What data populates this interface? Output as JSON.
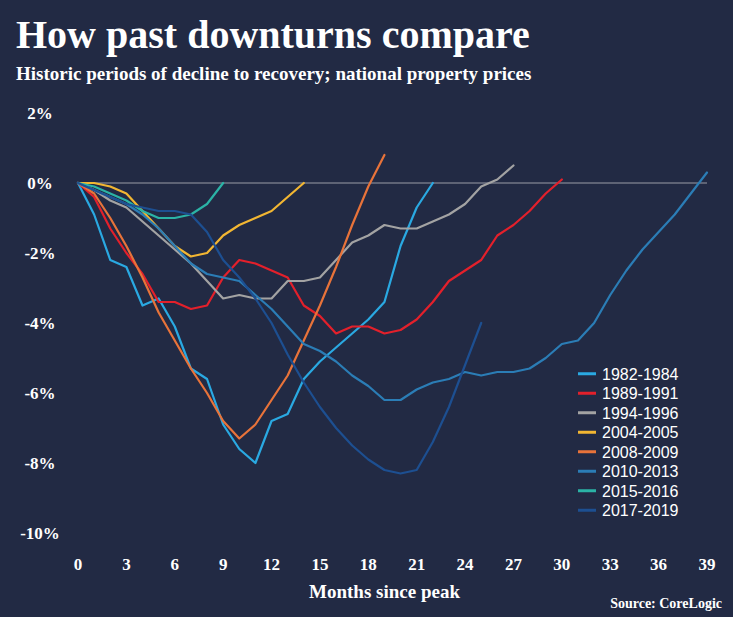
{
  "chart_data": {
    "type": "line",
    "title": "How past downturns compare",
    "subtitle": "Historic periods of decline to recovery; national property prices",
    "x_label": "Months since peak",
    "source": "Source: CoreLogic",
    "x": [
      0,
      1,
      2,
      3,
      4,
      5,
      6,
      7,
      8,
      9,
      10,
      11,
      12,
      13,
      14,
      15,
      16,
      17,
      18,
      19,
      20,
      21,
      22,
      23,
      24,
      25,
      26,
      27,
      28,
      29,
      30,
      31,
      32,
      33,
      34,
      35,
      36,
      37,
      38,
      39
    ],
    "xlim": [
      0,
      39
    ],
    "xticks": [
      0,
      3,
      6,
      9,
      12,
      15,
      18,
      21,
      24,
      27,
      30,
      33,
      36,
      39
    ],
    "ylim": [
      -10,
      2
    ],
    "yticks": [
      {
        "value": 2,
        "label": "2%"
      },
      {
        "value": 0,
        "label": "0%"
      },
      {
        "value": -2,
        "label": "-2%"
      },
      {
        "value": -4,
        "label": "-4%"
      },
      {
        "value": -6,
        "label": "-6%"
      },
      {
        "value": -8,
        "label": "-8%"
      },
      {
        "value": -10,
        "label": "-10%"
      }
    ],
    "grid": false,
    "legend": "bottom-right",
    "series": [
      {
        "name": "1982-1984",
        "color": "#2aa9e2",
        "values": [
          0,
          -0.9,
          -2.2,
          -2.4,
          -3.5,
          -3.3,
          -4.1,
          -5.3,
          -5.6,
          -6.9,
          -7.6,
          -8.0,
          -6.8,
          -6.6,
          -5.6,
          -5.1,
          -4.7,
          -4.3,
          -3.9,
          -3.4,
          -1.8,
          -0.7,
          0,
          null,
          null,
          null,
          null,
          null,
          null,
          null,
          null,
          null,
          null,
          null,
          null,
          null,
          null,
          null,
          null,
          null
        ]
      },
      {
        "name": "1989-1991",
        "color": "#e3202b",
        "values": [
          0,
          -0.4,
          -1.3,
          -2.0,
          -2.6,
          -3.4,
          -3.4,
          -3.6,
          -3.5,
          -2.7,
          -2.2,
          -2.3,
          -2.5,
          -2.7,
          -3.5,
          -3.8,
          -4.3,
          -4.1,
          -4.1,
          -4.3,
          -4.2,
          -3.9,
          -3.4,
          -2.8,
          -2.5,
          -2.2,
          -1.5,
          -1.2,
          -0.8,
          -0.3,
          0.1,
          null,
          null,
          null,
          null,
          null,
          null,
          null,
          null,
          null
        ]
      },
      {
        "name": "1994-1996",
        "color": "#a3a3a3",
        "values": [
          0,
          -0.2,
          -0.5,
          -0.7,
          -1.1,
          -1.5,
          -1.9,
          -2.3,
          -2.8,
          -3.3,
          -3.2,
          -3.3,
          -3.3,
          -2.8,
          -2.8,
          -2.7,
          -2.2,
          -1.7,
          -1.5,
          -1.2,
          -1.3,
          -1.3,
          -1.1,
          -0.9,
          -0.6,
          -0.1,
          0.1,
          0.5,
          null,
          null,
          null,
          null,
          null,
          null,
          null,
          null,
          null,
          null,
          null,
          null
        ]
      },
      {
        "name": "2004-2005",
        "color": "#f2b632",
        "values": [
          0,
          0,
          -0.1,
          -0.3,
          -0.8,
          -1.3,
          -1.8,
          -2.1,
          -2.0,
          -1.5,
          -1.2,
          -1.0,
          -0.8,
          -0.4,
          0,
          null,
          null,
          null,
          null,
          null,
          null,
          null,
          null,
          null,
          null,
          null,
          null,
          null,
          null,
          null,
          null,
          null,
          null,
          null,
          null,
          null,
          null,
          null,
          null,
          null
        ]
      },
      {
        "name": "2008-2009",
        "color": "#e8733a",
        "values": [
          0,
          -0.3,
          -1.0,
          -1.8,
          -2.7,
          -3.7,
          -4.5,
          -5.3,
          -6.0,
          -6.8,
          -7.3,
          -6.9,
          -6.2,
          -5.5,
          -4.5,
          -3.5,
          -2.4,
          -1.2,
          -0.1,
          0.8,
          null,
          null,
          null,
          null,
          null,
          null,
          null,
          null,
          null,
          null,
          null,
          null,
          null,
          null,
          null,
          null,
          null,
          null,
          null,
          null
        ]
      },
      {
        "name": "2010-2013",
        "color": "#2b7db6",
        "values": [
          0,
          -0.2,
          -0.4,
          -0.6,
          -0.9,
          -1.3,
          -1.8,
          -2.3,
          -2.6,
          -2.7,
          -2.8,
          -3.2,
          -3.6,
          -4.1,
          -4.6,
          -4.8,
          -5.1,
          -5.5,
          -5.8,
          -6.2,
          -6.2,
          -5.9,
          -5.7,
          -5.6,
          -5.4,
          -5.5,
          -5.4,
          -5.4,
          -5.3,
          -5.0,
          -4.6,
          -4.5,
          -4.0,
          -3.2,
          -2.5,
          -1.9,
          -1.4,
          -0.9,
          -0.3,
          0.3
        ]
      },
      {
        "name": "2015-2016",
        "color": "#2bb3a6",
        "values": [
          0,
          -0.1,
          -0.3,
          -0.5,
          -0.8,
          -1.0,
          -1.0,
          -0.9,
          -0.6,
          0,
          null,
          null,
          null,
          null,
          null,
          null,
          null,
          null,
          null,
          null,
          null,
          null,
          null,
          null,
          null,
          null,
          null,
          null,
          null,
          null,
          null,
          null,
          null,
          null,
          null,
          null,
          null,
          null,
          null,
          null
        ]
      },
      {
        "name": "2017-2019",
        "color": "#1d4f91",
        "values": [
          0,
          -0.2,
          -0.4,
          -0.6,
          -0.7,
          -0.8,
          -0.8,
          -0.9,
          -1.4,
          -2.2,
          -2.7,
          -3.3,
          -4.0,
          -4.9,
          -5.7,
          -6.4,
          -7.0,
          -7.5,
          -7.9,
          -8.2,
          -8.3,
          -8.2,
          -7.4,
          -6.4,
          -5.2,
          -4.0,
          null,
          null,
          null,
          null,
          null,
          null,
          null,
          null,
          null,
          null,
          null,
          null,
          null,
          null
        ]
      }
    ]
  }
}
